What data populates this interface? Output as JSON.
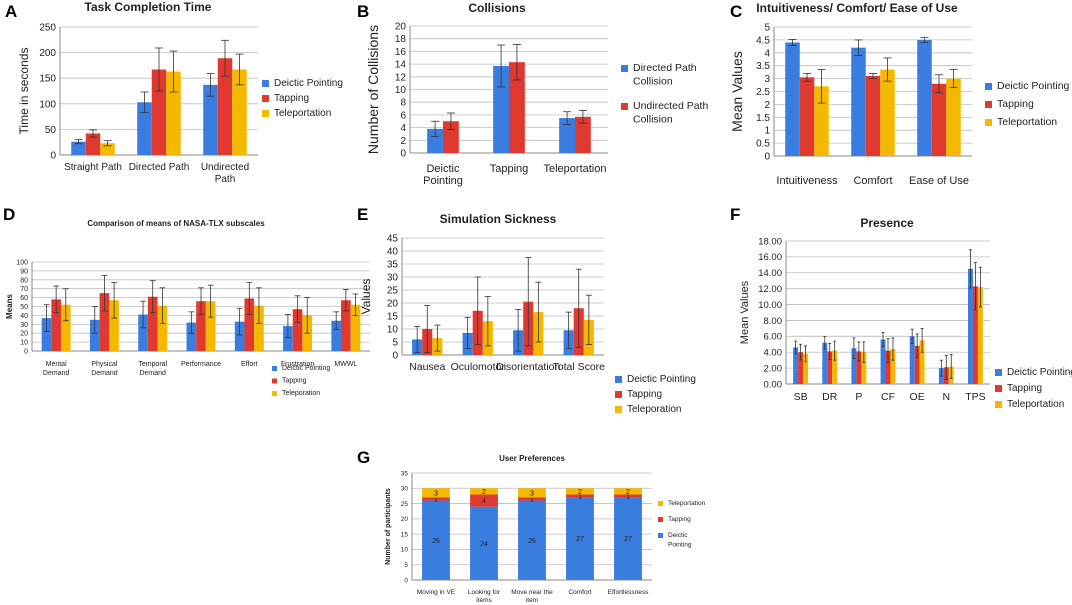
{
  "colors": {
    "blue": "#3a7de0",
    "red": "#e03a30",
    "yellow": "#f5b800",
    "grid": "#bdbdbd",
    "axis": "#888888",
    "text": "#222222"
  },
  "chart_data": [
    {
      "id": "A",
      "panel_label": "A",
      "type": "bar",
      "title": "Task Completion Time",
      "ylabel": "Time in seconds",
      "xlabel": "",
      "ylim": [
        0,
        250
      ],
      "yticks": [
        0,
        50,
        100,
        150,
        200,
        250
      ],
      "grid": true,
      "categories": [
        [
          "Straight Path"
        ],
        [
          "Directed Path"
        ],
        [
          "Undirected",
          "Path"
        ]
      ],
      "series": [
        {
          "name": "Deictic Pointing",
          "color": "blue",
          "values": [
            26,
            103,
            137
          ],
          "errors": [
            4,
            20,
            22
          ]
        },
        {
          "name": "Tapping",
          "color": "red",
          "values": [
            42,
            167,
            189
          ],
          "errors": [
            7,
            42,
            35
          ]
        },
        {
          "name": "Teleportation",
          "color": "yellow",
          "values": [
            23,
            163,
            167
          ],
          "errors": [
            5,
            40,
            30
          ]
        }
      ],
      "legend": [
        [
          "Deictic Pointing"
        ],
        [
          "Tapping"
        ],
        [
          "Teleportation"
        ]
      ]
    },
    {
      "id": "B",
      "panel_label": "B",
      "type": "bar",
      "title": "Collisions",
      "ylabel": "Number of Collisions",
      "xlabel": "",
      "ylim": [
        0,
        20
      ],
      "yticks": [
        0,
        2,
        4,
        6,
        8,
        10,
        12,
        14,
        16,
        18,
        20
      ],
      "grid": true,
      "categories": [
        [
          "Deictic",
          "Pointing"
        ],
        [
          "Tapping"
        ],
        [
          "Teleportation"
        ]
      ],
      "series": [
        {
          "name": "Directed Path Collision",
          "color": "blue",
          "values": [
            3.8,
            13.7,
            5.5
          ],
          "errors": [
            1.2,
            3.3,
            1.0
          ]
        },
        {
          "name": "Undirected Path Collision",
          "color": "red",
          "values": [
            5.0,
            14.3,
            5.7
          ],
          "errors": [
            1.3,
            2.8,
            1.0
          ]
        }
      ],
      "legend": [
        [
          "Directed Path",
          "Collision"
        ],
        [
          "Undirected Path",
          "Collision"
        ]
      ]
    },
    {
      "id": "C",
      "panel_label": "C",
      "type": "bar",
      "title": "Intuitiveness/ Comfort/ Ease of Use",
      "ylabel": "Mean Values",
      "xlabel": "",
      "ylim": [
        0,
        5
      ],
      "yticks": [
        0,
        0.5,
        1,
        1.5,
        2,
        2.5,
        3,
        3.5,
        4,
        4.5,
        5
      ],
      "grid": true,
      "categories": [
        [
          "Intuitiveness"
        ],
        [
          "Comfort"
        ],
        [
          "Ease of Use"
        ]
      ],
      "series": [
        {
          "name": "Deictic Pointing",
          "color": "blue",
          "values": [
            4.4,
            4.2,
            4.5
          ],
          "errors": [
            0.12,
            0.3,
            0.1
          ]
        },
        {
          "name": "Tapping",
          "color": "red",
          "values": [
            3.05,
            3.1,
            2.8
          ],
          "errors": [
            0.15,
            0.1,
            0.35
          ]
        },
        {
          "name": "Teleportation",
          "color": "yellow",
          "values": [
            2.7,
            3.35,
            3.0
          ],
          "errors": [
            0.65,
            0.45,
            0.35
          ]
        }
      ],
      "legend": [
        [
          "Deictic Pointing"
        ],
        [
          "Tapping"
        ],
        [
          "Teleportation"
        ]
      ]
    },
    {
      "id": "D",
      "panel_label": "D",
      "type": "bar",
      "title": "Comparison of means of NASA-TLX subscales",
      "ylabel": "Means",
      "xlabel": "",
      "ylim": [
        0,
        100
      ],
      "yticks": [
        0,
        10,
        20,
        30,
        40,
        50,
        60,
        70,
        80,
        90,
        100
      ],
      "grid": true,
      "categories": [
        [
          "Mental",
          "Demand"
        ],
        [
          "Physical",
          "Demand"
        ],
        [
          "Temporal",
          "Demand"
        ],
        [
          "Performance"
        ],
        [
          "Effort"
        ],
        [
          "Frustration"
        ],
        [
          "MWWL"
        ]
      ],
      "series": [
        {
          "name": "Deictic Pointing",
          "color": "blue",
          "values": [
            37,
            35,
            41,
            32,
            33,
            28,
            34
          ],
          "errors": [
            15,
            15,
            15,
            12,
            15,
            13,
            10
          ]
        },
        {
          "name": "Tapping",
          "color": "red",
          "values": [
            58,
            65,
            61,
            56,
            59,
            47,
            57
          ],
          "errors": [
            15,
            20,
            18,
            15,
            18,
            15,
            12
          ]
        },
        {
          "name": "Teleporation",
          "color": "yellow",
          "values": [
            52,
            57,
            51,
            56,
            51,
            40,
            52
          ],
          "errors": [
            18,
            20,
            20,
            18,
            20,
            20,
            12
          ]
        }
      ],
      "legend": [
        [
          "Deictic Pointing"
        ],
        [
          "Tapping"
        ],
        [
          "Teleporation"
        ]
      ]
    },
    {
      "id": "E",
      "panel_label": "E",
      "type": "bar",
      "title": "Simulation Sickness",
      "ylabel": "Values",
      "xlabel": "",
      "ylim": [
        0,
        45
      ],
      "yticks": [
        0,
        5,
        10,
        15,
        20,
        25,
        30,
        35,
        40,
        45
      ],
      "grid": true,
      "categories": [
        [
          "Nausea"
        ],
        [
          "Oculomotor"
        ],
        [
          "Disorientation"
        ],
        [
          "Total Score"
        ]
      ],
      "series": [
        {
          "name": "Deictic Pointing",
          "color": "blue",
          "values": [
            6,
            8.5,
            9.5,
            9.5
          ],
          "errors": [
            5,
            6,
            8,
            7
          ]
        },
        {
          "name": "Tapping",
          "color": "red",
          "values": [
            10,
            17,
            20.5,
            18
          ],
          "errors": [
            9,
            13,
            17,
            15
          ]
        },
        {
          "name": "Teleporation",
          "color": "yellow",
          "values": [
            6.5,
            13,
            16.5,
            13.5
          ],
          "errors": [
            5,
            9.5,
            11.5,
            9.5
          ]
        }
      ],
      "legend": [
        [
          "Deictic Pointing"
        ],
        [
          "Tapping"
        ],
        [
          "Teleporation"
        ]
      ]
    },
    {
      "id": "F",
      "panel_label": "F",
      "type": "bar",
      "title": "Presence",
      "ylabel": "Mean Values",
      "xlabel": "",
      "ylim": [
        0,
        18
      ],
      "yticks": [
        0,
        2,
        4,
        6,
        8,
        10,
        12,
        14,
        16,
        18
      ],
      "tick_format": "0.00",
      "grid": true,
      "categories": [
        [
          "SB"
        ],
        [
          "DR"
        ],
        [
          "P"
        ],
        [
          "CF"
        ],
        [
          "OE"
        ],
        [
          "N"
        ],
        [
          "TPS"
        ]
      ],
      "series": [
        {
          "name": "Deictic Pointing",
          "color": "blue",
          "values": [
            4.6,
            5.2,
            4.5,
            5.6,
            6.0,
            2.0,
            14.5
          ],
          "errors": [
            0.8,
            0.8,
            1.3,
            0.9,
            0.9,
            1.0,
            2.4
          ]
        },
        {
          "name": "Tapping",
          "color": "red",
          "values": [
            4.0,
            4.1,
            4.1,
            4.2,
            4.8,
            2.1,
            12.3
          ],
          "errors": [
            1.0,
            1.0,
            1.2,
            1.5,
            1.5,
            1.5,
            3.0
          ]
        },
        {
          "name": "Teleportation",
          "color": "yellow",
          "values": [
            3.8,
            4.2,
            4.0,
            4.4,
            5.5,
            2.2,
            12.2
          ],
          "errors": [
            1.0,
            1.2,
            1.3,
            1.4,
            1.5,
            1.5,
            2.5
          ]
        }
      ],
      "legend": [
        [
          "Deictic Pointing"
        ],
        [
          "Tapping"
        ],
        [
          "Teleportation"
        ]
      ]
    },
    {
      "id": "G",
      "panel_label": "G",
      "type": "stacked_bar",
      "title": "User Preferences",
      "ylabel": "Number of participants",
      "xlabel": "",
      "ylim": [
        0,
        35
      ],
      "yticks": [
        0,
        5,
        10,
        15,
        20,
        25,
        30,
        35
      ],
      "grid": true,
      "categories": [
        [
          "Moving in VE"
        ],
        [
          "Looking for",
          "items"
        ],
        [
          "Move near the",
          "item"
        ],
        [
          "Comfort"
        ],
        [
          "Effortlessness"
        ]
      ],
      "series": [
        {
          "name": "Deictic Pointing",
          "color": "blue",
          "values": [
            26,
            24,
            26,
            27,
            27
          ],
          "labels": [
            "26",
            "24",
            "26",
            "27",
            "27"
          ]
        },
        {
          "name": "Tapping",
          "color": "red",
          "values": [
            1,
            4,
            1,
            1,
            1
          ],
          "labels": [
            "1",
            "4",
            "1",
            "1",
            "1"
          ]
        },
        {
          "name": "Teleportation",
          "color": "yellow",
          "values": [
            3,
            2,
            3,
            2,
            2
          ],
          "labels": [
            "3",
            "2",
            "3",
            "2",
            "2"
          ]
        }
      ],
      "legend": [
        [
          "Teleportation"
        ],
        [
          "Tapping"
        ],
        [
          "Deictic",
          "Pointing"
        ]
      ]
    }
  ]
}
